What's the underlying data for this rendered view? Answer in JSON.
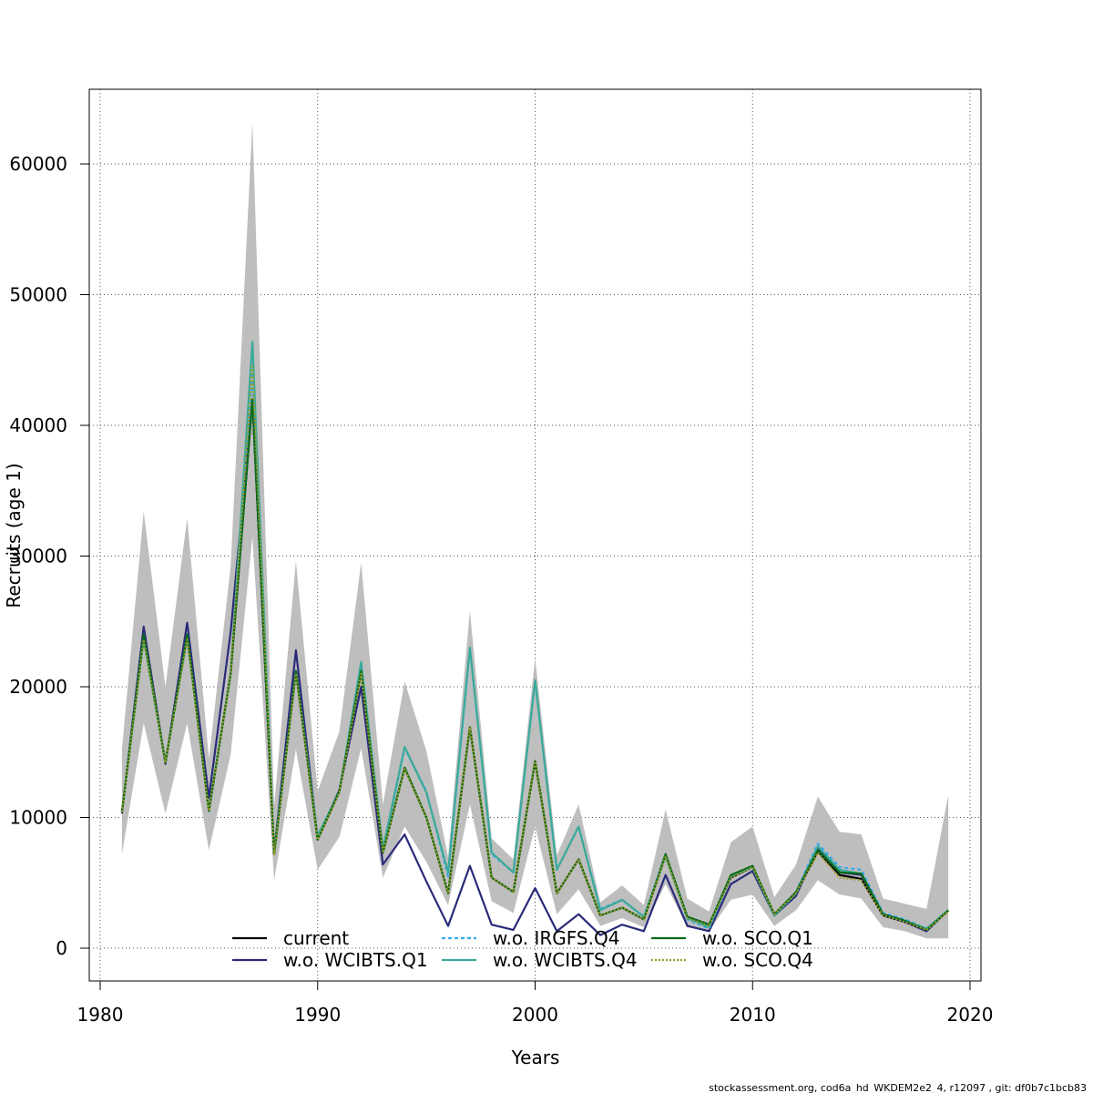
{
  "chart_data": {
    "type": "line",
    "xlabel": "Years",
    "ylabel": "Recruits (age 1)",
    "xlim": [
      1980,
      2020
    ],
    "ylim": [
      0,
      66000
    ],
    "x_ticks": [
      "1980",
      "1990",
      "2000",
      "2010",
      "2020"
    ],
    "y_ticks": [
      "0",
      "10000",
      "20000",
      "30000",
      "40000",
      "50000",
      "60000"
    ],
    "grid": true,
    "legend_position": "bottom",
    "x": [
      1981,
      1982,
      1983,
      1984,
      1985,
      1986,
      1987,
      1988,
      1989,
      1990,
      1991,
      1992,
      1993,
      1994,
      1995,
      1996,
      1997,
      1998,
      1999,
      2000,
      2001,
      2002,
      2003,
      2004,
      2005,
      2006,
      2007,
      2008,
      2009,
      2010,
      2011,
      2012,
      2013,
      2014,
      2015,
      2016,
      2017,
      2018,
      2019
    ],
    "confidence_band": {
      "color": "#bebebe",
      "lower": [
        7200,
        17200,
        10300,
        17200,
        7500,
        14800,
        31500,
        5200,
        15200,
        6000,
        8500,
        15300,
        5400,
        9300,
        6600,
        3300,
        11000,
        3600,
        2700,
        9300,
        2600,
        4500,
        1700,
        2300,
        1600,
        4900,
        1600,
        1300,
        3700,
        4100,
        1700,
        2900,
        5200,
        4100,
        3800,
        1600,
        1300,
        750,
        750
      ],
      "upper": [
        15200,
        33400,
        20000,
        32900,
        14500,
        29200,
        63200,
        10900,
        29600,
        12000,
        16600,
        29500,
        11000,
        20400,
        15100,
        7000,
        25800,
        8400,
        6800,
        22200,
        7100,
        11000,
        3500,
        4800,
        3300,
        10600,
        3800,
        2800,
        8100,
        9300,
        3900,
        6400,
        11600,
        8900,
        8700,
        3800,
        3400,
        3000,
        11700
      ]
    },
    "series": [
      {
        "name": "current",
        "color": "#000000",
        "dash": "",
        "values": [
          10400,
          24000,
          14200,
          24000,
          10500,
          21000,
          42000,
          7200,
          21200,
          8300,
          12000,
          21200,
          7300,
          13800,
          10000,
          4200,
          16900,
          5400,
          4300,
          14300,
          4200,
          6800,
          2500,
          3100,
          2200,
          7100,
          2400,
          1800,
          5400,
          6200,
          2600,
          4200,
          7400,
          5600,
          5300,
          2500,
          2000,
          1400,
          2900
        ]
      },
      {
        "name": "w.o. WCIBTS.Q1",
        "color": "#2a2a7a",
        "dash": "",
        "values": [
          10300,
          24600,
          14100,
          24900,
          11500,
          24200,
          42000,
          7300,
          22800,
          8400,
          12100,
          20000,
          6400,
          8700,
          5100,
          1700,
          6300,
          1800,
          1400,
          4600,
          1300,
          2600,
          1000,
          1800,
          1300,
          5600,
          1700,
          1300,
          4900,
          5900,
          2500,
          4000,
          7700,
          5800,
          5600,
          2600,
          2000,
          1300,
          2900
        ]
      },
      {
        "name": "w.o. IRGFS.Q4",
        "color": "#33aaee",
        "dash": "4,3",
        "values": [
          10400,
          24000,
          14200,
          24000,
          10500,
          21000,
          44000,
          7200,
          21200,
          8400,
          12000,
          21500,
          7400,
          15300,
          12000,
          5500,
          22900,
          7200,
          5800,
          20400,
          6000,
          9300,
          3000,
          3700,
          2400,
          7200,
          2200,
          1500,
          5500,
          6200,
          2500,
          4300,
          8000,
          6200,
          6000,
          2700,
          2200,
          1500,
          2900
        ]
      },
      {
        "name": "w.o. WCIBTS.Q4",
        "color": "#3aaa99",
        "dash": "",
        "values": [
          10400,
          23600,
          14200,
          23800,
          10500,
          21000,
          46400,
          7300,
          21200,
          8600,
          12000,
          21900,
          7600,
          15400,
          11900,
          5800,
          23000,
          7300,
          5800,
          20500,
          6000,
          9300,
          2900,
          3700,
          2400,
          7000,
          2300,
          1600,
          5500,
          6200,
          2500,
          4200,
          7800,
          6000,
          5700,
          2600,
          2100,
          1500,
          2900
        ]
      },
      {
        "name": "w.o. SCO.Q1",
        "color": "#0a6a1a",
        "dash": "",
        "values": [
          10400,
          24000,
          14200,
          24000,
          10500,
          21000,
          42000,
          7200,
          21200,
          8300,
          12000,
          21200,
          7300,
          13800,
          10000,
          4200,
          16900,
          5400,
          4300,
          14300,
          4200,
          6800,
          2500,
          3100,
          2200,
          7200,
          2400,
          1800,
          5600,
          6300,
          2600,
          4300,
          7500,
          5800,
          5700,
          2600,
          2100,
          1400,
          2900
        ]
      },
      {
        "name": "w.o. SCO.Q4",
        "color": "#9a9a2a",
        "dash": "2,2",
        "values": [
          10400,
          23600,
          14200,
          23600,
          10500,
          21000,
          44500,
          7100,
          21000,
          8300,
          11900,
          21000,
          7300,
          13700,
          10000,
          4200,
          16900,
          5400,
          4300,
          14300,
          4200,
          6800,
          2500,
          3100,
          2200,
          7000,
          2300,
          1700,
          5400,
          6200,
          2600,
          4200,
          7300,
          5400,
          5200,
          2500,
          2000,
          1400,
          2800
        ]
      }
    ]
  },
  "footer": "stockassessment.org, cod6a_hd_WKDEM2e2_4, r12097 , git: df0b7c1bcb83"
}
